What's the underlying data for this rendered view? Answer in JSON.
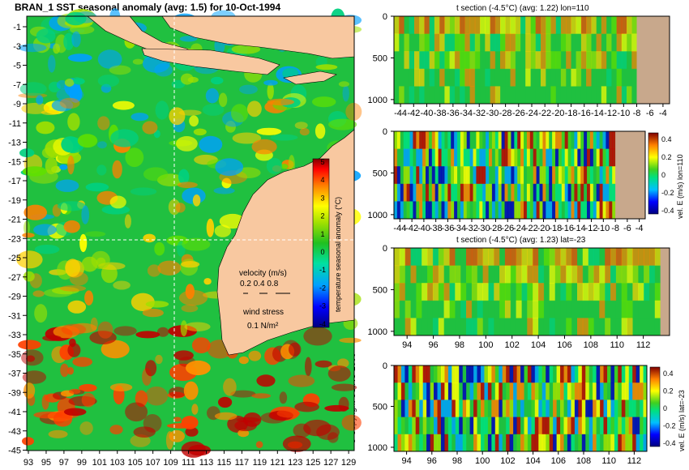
{
  "map": {
    "title": "BRAN_1  SST seasonal anomaly  (avg: 1.5)  for 10-Oct-1994",
    "lat_labels": [
      "-1",
      "-3",
      "-5",
      "-7",
      "-9",
      "-11",
      "-13",
      "-15",
      "-17",
      "-19",
      "-21",
      "-23",
      "-25",
      "-27",
      "-29",
      "-31",
      "-33",
      "-35",
      "-37",
      "-39",
      "-41",
      "-43",
      "-45"
    ],
    "lon_labels": [
      "93",
      "95",
      "97",
      "99",
      "101",
      "103",
      "105",
      "107",
      "109",
      "111",
      "113",
      "115",
      "117",
      "119",
      "121",
      "123",
      "125",
      "127",
      "129"
    ],
    "colorbar_ticks": [
      "5",
      "4",
      "3",
      "2",
      "1",
      "0",
      "-1",
      "-2",
      "-3",
      "-4"
    ],
    "colorbar_label": "temperature seasonal anomaly (°C)",
    "velocity_label": "velocity (m/s)",
    "velocity_scale": "0.2 0.4 0.8",
    "wind_label": "wind stress",
    "wind_scale": "0.1 N/m²",
    "colors": {
      "land": "#f8c8a0",
      "ocean_mean": "#20c040",
      "warm": "#c00000",
      "cool": "#0040ff"
    }
  },
  "copyright": "© Copyright CSIRO 2006",
  "chart_data": [
    {
      "type": "heatmap",
      "title": "t section (-4.5°C) (avg: 1.22) lon=110",
      "x_tick_labels": [
        "-44",
        "-42",
        "-40",
        "-38",
        "-36",
        "-34",
        "-32",
        "-30",
        "-28",
        "-26",
        "-24",
        "-22",
        "-20",
        "-18",
        "-16",
        "-14",
        "-12",
        "-10",
        "-8",
        "-6",
        "-4"
      ],
      "y_tick_labels": [
        "0",
        "500",
        "1000"
      ],
      "xlim": [
        -45,
        -3
      ],
      "ylim": [
        1050,
        0
      ],
      "land_from_x": -8
    },
    {
      "type": "heatmap",
      "title": "",
      "x_tick_labels": [
        "-44",
        "-42",
        "-40",
        "-38",
        "-36",
        "-34",
        "-32",
        "-30",
        "-28",
        "-26",
        "-24",
        "-22",
        "-20",
        "-18",
        "-16",
        "-14",
        "-12",
        "-10",
        "-8",
        "-6",
        "-4"
      ],
      "y_tick_labels": [
        "0",
        "500",
        "1000"
      ],
      "colorbar_ticks": [
        "0.4",
        "0.2",
        "0",
        "-0.2",
        "-0.4"
      ],
      "colorbar_label": "vel. E (m/s) lon=110",
      "xlim": [
        -45,
        -3
      ],
      "ylim": [
        1050,
        0
      ],
      "land_from_x": -8
    },
    {
      "type": "heatmap",
      "title": "t section (-4.5°C) (avg: 1.23) lat=-23",
      "x_tick_labels": [
        "94",
        "96",
        "98",
        "100",
        "102",
        "104",
        "106",
        "108",
        "110",
        "112"
      ],
      "y_tick_labels": [
        "0",
        "500",
        "1000"
      ],
      "xlim": [
        93,
        114
      ],
      "ylim": [
        1050,
        0
      ],
      "land_from_x": 113.3
    },
    {
      "type": "heatmap",
      "title": "",
      "x_tick_labels": [
        "94",
        "96",
        "98",
        "100",
        "102",
        "104",
        "106",
        "108",
        "110",
        "112"
      ],
      "y_tick_labels": [
        "0",
        "500",
        "1000"
      ],
      "colorbar_ticks": [
        "0.4",
        "0.2",
        "0",
        "-0.2",
        "-0.4"
      ],
      "colorbar_label": "vel. E (m/s) lat=-23",
      "xlim": [
        93,
        113
      ],
      "ylim": [
        1050,
        0
      ]
    }
  ]
}
